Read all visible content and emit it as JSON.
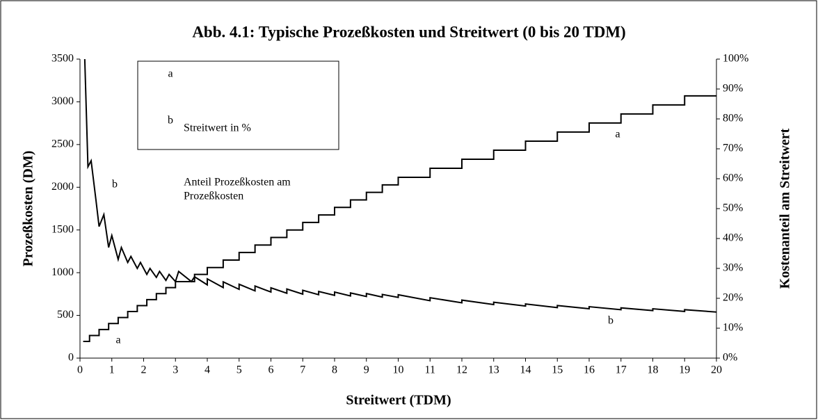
{
  "chart_data": {
    "type": "line",
    "title": "Abb. 4.1: Typische Prozeßkosten und Streitwert (0 bis 20 TDM)",
    "xlabel": "Streitwert (TDM)",
    "ylabel": "Prozeßkosten (DM)",
    "y2label": "Kostenanteil am Streitwert",
    "xlim": [
      0,
      20
    ],
    "xticks": [
      0,
      1,
      2,
      3,
      4,
      5,
      6,
      7,
      8,
      9,
      10,
      11,
      12,
      13,
      14,
      15,
      16,
      17,
      18,
      19,
      20
    ],
    "ylim": [
      0,
      3500
    ],
    "yticks": [
      0,
      500,
      1000,
      1500,
      2000,
      2500,
      3000,
      3500
    ],
    "y2lim": [
      0,
      100
    ],
    "y2ticks": [
      {
        "value": 0,
        "label": "0%"
      },
      {
        "value": 10,
        "label": "10%"
      },
      {
        "value": 20,
        "label": "20%"
      },
      {
        "value": 30,
        "label": "30%"
      },
      {
        "value": 40,
        "label": "40%"
      },
      {
        "value": 50,
        "label": "50%"
      },
      {
        "value": 60,
        "label": "60%"
      },
      {
        "value": 70,
        "label": "70%"
      },
      {
        "value": 80,
        "label": "80%"
      },
      {
        "value": 90,
        "label": "90%"
      },
      {
        "value": 100,
        "label": "100%"
      }
    ],
    "grid": false,
    "legend": {
      "position": "upper left",
      "items": [
        {
          "key": "a",
          "lines": [
            "Prozeßkosten"
          ]
        },
        {
          "key": "b",
          "lines": [
            "Anteil Prozeßkosten am",
            "Streitwert in %"
          ]
        }
      ]
    },
    "annotations": [
      {
        "text": "b"
      },
      {
        "text": "a"
      },
      {
        "text": "a"
      },
      {
        "text": "b"
      }
    ],
    "series": [
      {
        "name": "a",
        "color": "#000000",
        "x": [
          0.1,
          0.3,
          0.3,
          0.6,
          0.6,
          0.9,
          0.9,
          1.2,
          1.2,
          1.5,
          1.5,
          1.8,
          1.8,
          2.1,
          2.1,
          2.4,
          2.4,
          2.7,
          2.7,
          3.0,
          3.0,
          3.6,
          3.6,
          4.0,
          4.0,
          4.5,
          4.5,
          5,
          5,
          5.5,
          5.5,
          6,
          6,
          6.5,
          6.5,
          7,
          7,
          7.5,
          7.5,
          8,
          8,
          8.5,
          8.5,
          9,
          9,
          9.5,
          9.5,
          10,
          10,
          11,
          11,
          12,
          12,
          13,
          13,
          14,
          14,
          15,
          15,
          16,
          16,
          17,
          17,
          18,
          18,
          19,
          19,
          20
        ],
        "values": [
          195,
          195,
          265,
          265,
          335,
          335,
          405,
          405,
          475,
          475,
          545,
          545,
          615,
          615,
          685,
          685,
          755,
          755,
          825,
          825,
          895,
          895,
          980,
          980,
          1060,
          1060,
          1148,
          1148,
          1236,
          1236,
          1324,
          1324,
          1412,
          1412,
          1500,
          1500,
          1588,
          1588,
          1676,
          1676,
          1764,
          1764,
          1852,
          1852,
          1940,
          1940,
          2028,
          2028,
          2116,
          2116,
          2222,
          2222,
          2328,
          2328,
          2434,
          2434,
          2540,
          2540,
          2646,
          2646,
          2752,
          2752,
          2858,
          2858,
          2964,
          2964,
          3070,
          3070
        ]
      },
      {
        "name": "b",
        "color": "#000000",
        "axis": "y2",
        "x": [
          0.15,
          0.25,
          0.35,
          0.5,
          0.6,
          0.75,
          0.9,
          1.0,
          1.2,
          1.3,
          1.5,
          1.6,
          1.8,
          1.9,
          2.1,
          2.2,
          2.4,
          2.5,
          2.7,
          2.8,
          3.0,
          3.1,
          3.5,
          3.6,
          4,
          4,
          4.5,
          4.5,
          5,
          5,
          5.5,
          5.5,
          6,
          6,
          6.5,
          6.5,
          7,
          7,
          7.5,
          7.5,
          8,
          8,
          8.5,
          8.5,
          9,
          9,
          9.5,
          9.5,
          10,
          10,
          11,
          11,
          12,
          12,
          13,
          13,
          14,
          14,
          15,
          15,
          16,
          16,
          17,
          17,
          18,
          18,
          19,
          19,
          20
        ],
        "values": [
          100,
          64,
          66,
          53,
          44,
          48,
          37,
          41,
          33,
          37,
          32,
          34,
          30,
          32,
          28,
          30,
          27,
          29,
          26,
          28,
          25.6,
          29,
          25.6,
          27.2,
          24.5,
          26.5,
          23.6,
          25.5,
          23.0,
          24.7,
          22.5,
          24.1,
          22.1,
          23.5,
          21.7,
          23.1,
          21.4,
          22.7,
          21.2,
          22.3,
          21.0,
          22.1,
          20.8,
          21.8,
          20.6,
          21.6,
          20.4,
          21.3,
          20.3,
          21.2,
          19.2,
          20.2,
          18.5,
          19.4,
          17.9,
          18.7,
          17.4,
          18.1,
          16.9,
          17.6,
          16.5,
          17.2,
          16.2,
          16.8,
          15.9,
          16.5,
          15.6,
          16.2,
          15.4
        ]
      }
    ]
  }
}
